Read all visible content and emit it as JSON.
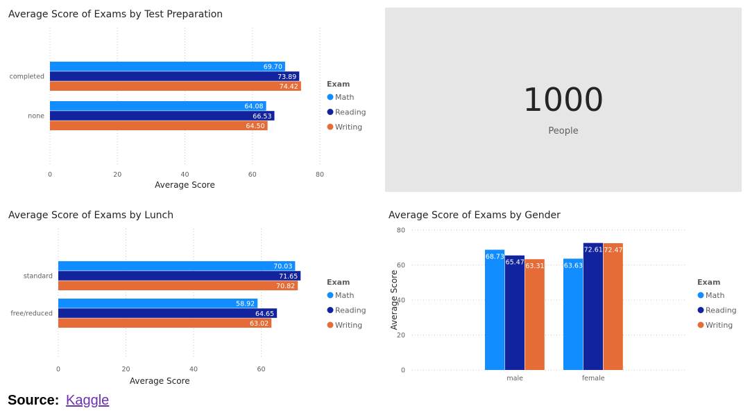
{
  "colors": {
    "Math": "#118dff",
    "Reading": "#12239e",
    "Writing": "#e66c37"
  },
  "legend_title": "Exam",
  "card": {
    "value": "1000",
    "label": "People"
  },
  "source": {
    "label": "Source:",
    "link_text": "Kaggle"
  },
  "chart_data": [
    {
      "type": "bar",
      "orientation": "horizontal",
      "title": "Average Score of Exams by Test Preparation",
      "xlabel": "Average Score",
      "ylabel": "",
      "xlim": [
        0,
        80
      ],
      "ticks": [
        "0",
        "20",
        "40",
        "60",
        "80"
      ],
      "categories": [
        "completed",
        "none"
      ],
      "series": [
        {
          "name": "Math",
          "values": [
            69.7,
            64.08
          ],
          "labels": [
            "69.70",
            "64.08"
          ]
        },
        {
          "name": "Reading",
          "values": [
            73.89,
            66.53
          ],
          "labels": [
            "73.89",
            "66.53"
          ]
        },
        {
          "name": "Writing",
          "values": [
            74.42,
            64.5
          ],
          "labels": [
            "74.42",
            "64.50"
          ]
        }
      ],
      "legend": "right",
      "grid": true
    },
    {
      "type": "bar",
      "orientation": "horizontal",
      "title": "Average Score of Exams by Lunch",
      "xlabel": "Average Score",
      "ylabel": "",
      "xlim": [
        0,
        80
      ],
      "ticks": [
        "0",
        "20",
        "40",
        "60"
      ],
      "categories": [
        "standard",
        "free/reduced"
      ],
      "series": [
        {
          "name": "Math",
          "values": [
            70.03,
            58.92
          ],
          "labels": [
            "70.03",
            "58.92"
          ]
        },
        {
          "name": "Reading",
          "values": [
            71.65,
            64.65
          ],
          "labels": [
            "71.65",
            "64.65"
          ]
        },
        {
          "name": "Writing",
          "values": [
            70.82,
            63.02
          ],
          "labels": [
            "70.82",
            "63.02"
          ]
        }
      ],
      "legend": "right",
      "grid": true
    },
    {
      "type": "bar",
      "orientation": "vertical",
      "title": "Average Score of Exams by Gender",
      "xlabel": "",
      "ylabel": "Average Score",
      "ylim": [
        0,
        80
      ],
      "ticks": [
        "0",
        "20",
        "40",
        "60",
        "80"
      ],
      "categories": [
        "male",
        "female"
      ],
      "series": [
        {
          "name": "Math",
          "values": [
            68.73,
            63.63
          ],
          "labels": [
            "68.73",
            "63.63"
          ]
        },
        {
          "name": "Reading",
          "values": [
            65.47,
            72.61
          ],
          "labels": [
            "65.47",
            "72.61"
          ]
        },
        {
          "name": "Writing",
          "values": [
            63.31,
            72.47
          ],
          "labels": [
            "63.31",
            "72.47"
          ]
        }
      ],
      "legend": "right",
      "grid": true
    }
  ]
}
